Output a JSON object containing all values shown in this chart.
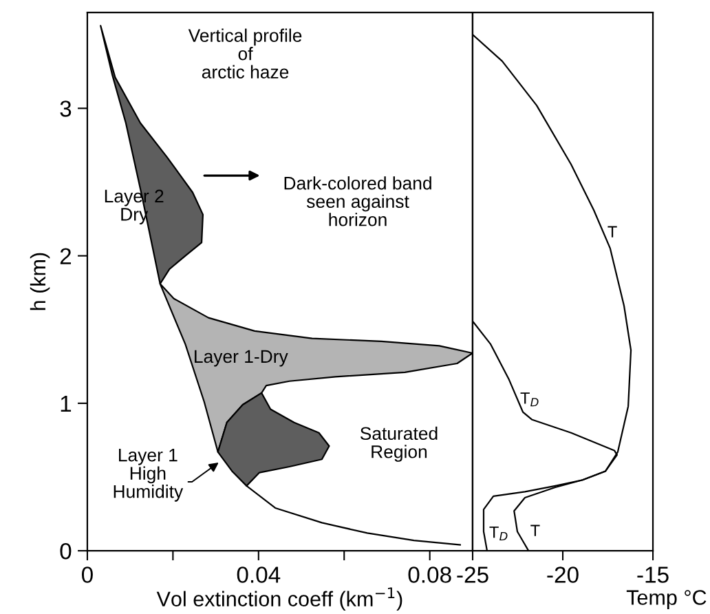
{
  "chart_data": [
    {
      "type": "area",
      "title": "Vertical profile\nof\narctic haze",
      "xlabel": "Vol extinction coeff (km$^{−1}$)",
      "ylabel": "h (km)",
      "xlim": [
        0,
        0.09
      ],
      "xticks": [
        0,
        {
          "value": 0.02,
          "label": null
        },
        0.04,
        {
          "value": 0.06,
          "label": null
        },
        0.08
      ],
      "ylim": [
        0,
        3.65
      ],
      "yticks": [
        0,
        1,
        2,
        3
      ],
      "grid": false,
      "series": [
        {
          "type": "area",
          "color": "#5e5e5e",
          "x": [
            0.0031,
            0.0065,
            0.0124,
            0.0186,
            0.0246,
            0.027,
            0.0267,
            0.0229,
            0.0192,
            0.017,
            0.0128,
            0.009,
            0.0058
          ],
          "values": [
            3.56,
            3.21,
            2.9,
            2.67,
            2.43,
            2.28,
            2.09,
            2.0,
            1.91,
            1.81,
            2.4,
            2.9,
            3.23
          ]
        },
        {
          "type": "area",
          "color": "#b4b4b4",
          "x": [
            0.017,
            0.0202,
            0.0283,
            0.0391,
            0.0525,
            0.0687,
            0.0822,
            0.09,
            0.0864,
            0.0742,
            0.058,
            0.0472,
            0.0418,
            0.0407,
            0.0363,
            0.0326,
            0.0305,
            0.0273,
            0.0229
          ],
          "values": [
            1.81,
            1.71,
            1.58,
            1.49,
            1.44,
            1.42,
            1.39,
            1.34,
            1.27,
            1.21,
            1.18,
            1.15,
            1.12,
            1.07,
            0.99,
            0.87,
            0.67,
            1.01,
            1.4
          ]
        },
        {
          "type": "area",
          "color": "#5e5e5e",
          "x": [
            0.0407,
            0.0428,
            0.0483,
            0.0541,
            0.0565,
            0.0548,
            0.0472,
            0.0402,
            0.0372,
            0.0338,
            0.0305,
            0.0326,
            0.0363
          ],
          "values": [
            1.07,
            0.96,
            0.87,
            0.8,
            0.71,
            0.62,
            0.57,
            0.53,
            0.44,
            0.54,
            0.67,
            0.87,
            0.99
          ]
        },
        {
          "type": "line",
          "color": "#000000",
          "x": [
            0.0372,
            0.0439,
            0.0548,
            0.0654,
            0.0763,
            0.0871
          ],
          "values": [
            0.44,
            0.29,
            0.19,
            0.12,
            0.07,
            0.04
          ]
        }
      ],
      "annotations": [
        "Layer 2\nDry",
        "Dark-colored band\nseen against\nhorizon",
        "Layer 1-Dry",
        "Saturated\nRegion",
        "Layer 1\nHigh\nHumidity"
      ]
    },
    {
      "type": "line",
      "xlabel": "Temp °C",
      "xlim": [
        -25,
        -15
      ],
      "xticks": [
        -25,
        -20,
        -15
      ],
      "ylim": [
        0,
        3.65
      ],
      "tick_labels": "x",
      "grid": false,
      "series": [
        {
          "color": "#000000",
          "x": [
            -25,
            -23.36,
            -21.45,
            -19.54,
            -18.28,
            -17.37,
            -16.6,
            -16.22,
            -16.37,
            -16.95,
            -17.63,
            -18.9,
            -20.42,
            -22.1,
            -22.7,
            -22.52,
            -21.9
          ],
          "values": [
            3.5,
            3.32,
            3.02,
            2.62,
            2.31,
            2.05,
            1.66,
            1.36,
            0.98,
            0.67,
            0.54,
            0.48,
            0.43,
            0.36,
            0.27,
            0.13,
            0.0
          ]
        },
        {
          "color": "#000000",
          "x": [
            -24.96,
            -24.0,
            -22.98,
            -22.21,
            -21.72,
            -19.54,
            -17.14,
            -16.99,
            -17.63,
            -18.9,
            -20.42,
            -22.1,
            -23.85,
            -24.39,
            -24.39,
            -24.2
          ],
          "values": [
            1.55,
            1.4,
            1.16,
            0.94,
            0.89,
            0.8,
            0.68,
            0.65,
            0.54,
            0.48,
            0.44,
            0.4,
            0.37,
            0.28,
            0.13,
            0.0
          ]
        }
      ],
      "annotations": [
        "T",
        "T$_{D}$",
        "T$_{D}$",
        "T"
      ]
    }
  ]
}
